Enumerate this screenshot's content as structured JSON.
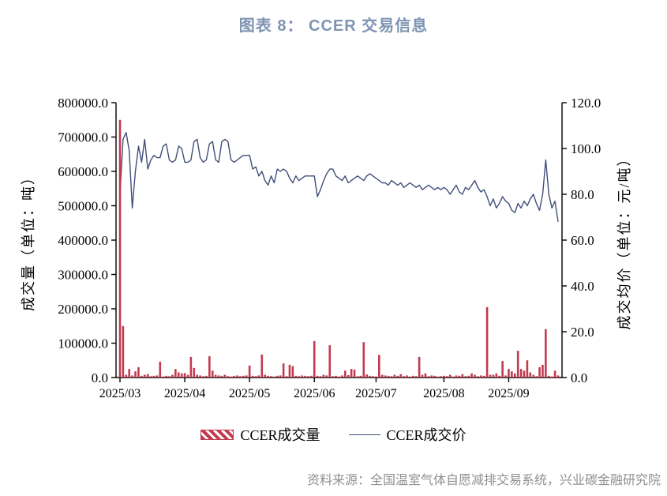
{
  "title": "图表 8：  CCER 交易信息",
  "source": "资料来源：全国温室气体自愿减排交易系统，兴业碳金融研究院",
  "legend": [
    {
      "label": "CCER成交量",
      "type": "bar"
    },
    {
      "label": "CCER成交价",
      "type": "line"
    }
  ],
  "colors": {
    "title": "#7e94b2",
    "bar": "#c23a50",
    "line": "#404f78",
    "axis": "#000000",
    "source": "#8f8f8f"
  },
  "chart_data": {
    "type": "bar+line (dual axis)",
    "title": "图表 8： CCER 交易信息",
    "x_description": "daily trading data, 2025/03 through late 2025/09",
    "x_tick_labels": [
      "2025/03",
      "2025/04",
      "2025/05",
      "2025/06",
      "2025/07",
      "2025/08",
      "2025/09"
    ],
    "month_tick_indices": [
      0,
      21,
      42,
      63,
      83,
      105,
      126
    ],
    "grid": false,
    "legend_position": "bottom",
    "left_axis": {
      "title": "成交量（单位：吨）",
      "min": 0,
      "max": 800000,
      "step": 100000,
      "tick_labels": [
        "0.0",
        "100000.0",
        "200000.0",
        "300000.0",
        "400000.0",
        "500000.0",
        "600000.0",
        "700000.0",
        "800000.0"
      ]
    },
    "right_axis": {
      "title": "成交均价（单位：元/吨）",
      "min": 0,
      "max": 120,
      "step": 20,
      "tick_labels": [
        "0.0",
        "20.0",
        "40.0",
        "60.0",
        "80.0",
        "100.0",
        "120.0"
      ]
    },
    "series": [
      {
        "name": "CCER成交量",
        "type": "bar",
        "axis": "left",
        "values": [
          750000,
          150000,
          8000,
          25000,
          6000,
          18000,
          30000,
          5000,
          8000,
          10000,
          4000,
          5000,
          6000,
          46000,
          3000,
          5000,
          4000,
          8000,
          25000,
          15000,
          12000,
          13000,
          8000,
          60000,
          28000,
          8000,
          6000,
          4000,
          5000,
          62000,
          20000,
          8000,
          6000,
          5000,
          8000,
          4000,
          3000,
          5000,
          6000,
          4000,
          5000,
          6000,
          35000,
          5000,
          4000,
          6000,
          67000,
          8000,
          5000,
          4000,
          3000,
          5000,
          6000,
          41000,
          4000,
          37000,
          33000,
          5000,
          4000,
          6000,
          5000,
          4000,
          5000,
          106000,
          5000,
          4000,
          8000,
          6000,
          94000,
          4000,
          5000,
          3000,
          6000,
          20000,
          7000,
          25000,
          23000,
          4000,
          5000,
          103000,
          9000,
          5000,
          4000,
          3000,
          66000,
          8000,
          6000,
          5000,
          4000,
          8000,
          5000,
          10000,
          4000,
          6000,
          3000,
          5000,
          4000,
          60000,
          8000,
          12000,
          4000,
          6000,
          5000,
          3000,
          4000,
          5000,
          4000,
          8000,
          3000,
          6000,
          5000,
          10000,
          4000,
          5000,
          12000,
          8000,
          4000,
          6000,
          5000,
          205000,
          8000,
          8000,
          12000,
          5000,
          48000,
          6000,
          25000,
          18000,
          12000,
          78000,
          25000,
          20000,
          50000,
          15000,
          8000,
          4000,
          30000,
          37000,
          141000,
          5000,
          3000,
          20000,
          6000
        ]
      },
      {
        "name": "CCER成交价",
        "type": "line",
        "axis": "right",
        "values": [
          80,
          104,
          107,
          99,
          74,
          90,
          101,
          94,
          104,
          91,
          95,
          97,
          96,
          96,
          101,
          102,
          95,
          94,
          95,
          101,
          100,
          94,
          94,
          95,
          103,
          104,
          96,
          94,
          95,
          102,
          103,
          95,
          94,
          103,
          104,
          103,
          95,
          94,
          95,
          96,
          97,
          97,
          97,
          91,
          92,
          88,
          90,
          86,
          84,
          88,
          85,
          91,
          90,
          91,
          90,
          87,
          85,
          88,
          86,
          87,
          88,
          88,
          88,
          88,
          79,
          82,
          86,
          89,
          91,
          91,
          88,
          87,
          86,
          88,
          85,
          86,
          87,
          88,
          87,
          86,
          88,
          89,
          88,
          87,
          86,
          85,
          85,
          84,
          86,
          85,
          84,
          85,
          83,
          84,
          85,
          84,
          83,
          84,
          82,
          83,
          84,
          83,
          82,
          83,
          82,
          83,
          82,
          80,
          82,
          84,
          81,
          80,
          83,
          82,
          84,
          86,
          83,
          81,
          82,
          79,
          75,
          78,
          74,
          76,
          79,
          77,
          76,
          73,
          72,
          76,
          74,
          77,
          75,
          78,
          80,
          76,
          73,
          80,
          95,
          80,
          74,
          77,
          68
        ]
      }
    ]
  }
}
